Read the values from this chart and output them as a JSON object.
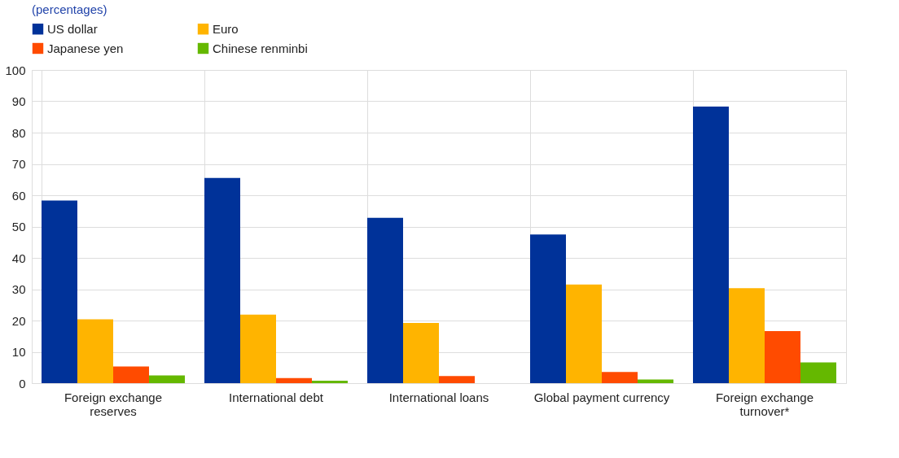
{
  "chart_data": {
    "type": "bar",
    "title": "(percentages)",
    "categories": [
      "Foreign exchange reserves",
      "International debt",
      "International loans",
      "Global payment currency",
      "Foreign exchange turnover*"
    ],
    "series": [
      {
        "name": "US dollar",
        "color": "#003299",
        "values": [
          58.3,
          65.5,
          52.8,
          47.5,
          88.3
        ]
      },
      {
        "name": "Euro",
        "color": "#ffb400",
        "values": [
          20.4,
          21.9,
          19.2,
          31.5,
          30.3
        ]
      },
      {
        "name": "Japanese yen",
        "color": "#ff4b00",
        "values": [
          5.3,
          1.6,
          2.3,
          3.6,
          16.6
        ]
      },
      {
        "name": "Chinese renminbi",
        "color": "#65b800",
        "values": [
          2.5,
          0.8,
          null,
          1.2,
          6.6
        ]
      }
    ],
    "ylim": [
      0,
      100
    ],
    "yticks": [
      0,
      10,
      20,
      30,
      40,
      50,
      60,
      70,
      80,
      90,
      100
    ],
    "grid": true,
    "legend": "top left"
  }
}
